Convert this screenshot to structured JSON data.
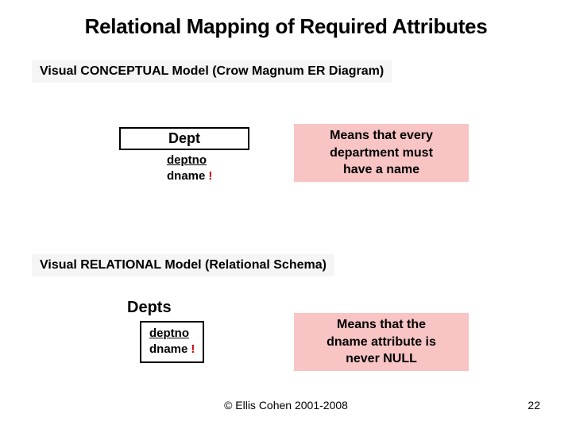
{
  "title": "Relational Mapping of Required Attributes",
  "section_conceptual": "Visual CONCEPTUAL Model (Crow Magnum ER Diagram)",
  "section_relational": "Visual RELATIONAL Model (Relational Schema)",
  "entity": {
    "name": "Dept",
    "attr_pk": "deptno",
    "attr_req": "dname",
    "exclamation": "!"
  },
  "relational": {
    "name": "Depts",
    "attr_pk": "deptno",
    "attr_req": "dname",
    "exclamation": "!"
  },
  "note_conceptual": {
    "line1": "Means that every",
    "line2": "department must",
    "line3": "have a name"
  },
  "note_relational": {
    "line1": "Means that the",
    "line2": "dname attribute is",
    "line3": "never NULL"
  },
  "footer": "© Ellis Cohen 2001-2008",
  "page": "22",
  "colors": {
    "note_bg": "#f8c4c4",
    "section_bg": "#f5f5f5",
    "exclamation": "#d00000",
    "border": "#000000",
    "text": "#000000",
    "background": "#ffffff"
  }
}
